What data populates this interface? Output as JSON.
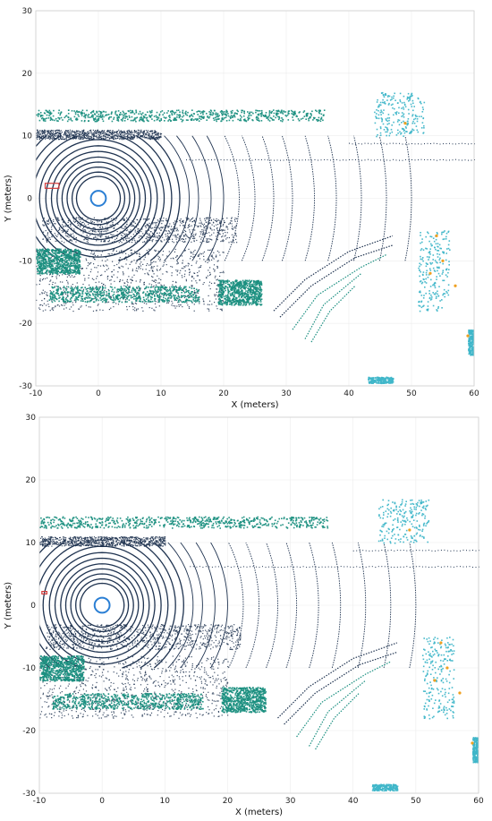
{
  "colors": {
    "ground": "#1f3350",
    "vegetation": "#1a8f80",
    "cyan_cluster": "#3fb6c9",
    "orange_points": "#f0a020",
    "ego_circle": "#2b7fd4",
    "red_marker": "#d23a3a"
  },
  "chart_data": [
    {
      "type": "scatter",
      "title": "",
      "xlabel": "X (meters)",
      "ylabel": "Y (meters)",
      "xlim": [
        -10,
        60
      ],
      "ylim": [
        -30,
        30
      ],
      "xticks": [
        -10,
        0,
        10,
        20,
        30,
        40,
        50,
        60
      ],
      "yticks": [
        -30,
        -20,
        -10,
        0,
        10,
        20,
        30
      ],
      "xtick_labels": [
        "-10",
        "0",
        "10",
        "20",
        "30",
        "40",
        "50",
        "60"
      ],
      "ytick_labels": [
        "-30",
        "-20",
        "-10",
        "0",
        "10",
        "20",
        "30"
      ],
      "grid": true,
      "ego": {
        "x": 0,
        "y": 0,
        "radius": 1.2
      },
      "red_marker": {
        "x": -8.5,
        "y": 2,
        "width": 2.2,
        "height": 0.8
      },
      "rings": {
        "center": [
          0,
          0
        ],
        "radii": [
          3.5,
          4.2,
          5,
          5.8,
          6.6,
          7.5,
          8.4,
          9.4,
          10.5,
          11.7,
          13,
          14.5,
          16,
          18,
          20,
          22.5,
          25,
          28,
          31,
          34.5,
          38,
          42,
          46,
          50
        ],
        "ymin": -10,
        "ymax": 10
      },
      "vegetation_bands": [
        {
          "x": [
            -10,
            36
          ],
          "y": [
            12.4,
            14.2
          ]
        },
        {
          "x": [
            -8,
            16
          ],
          "y": [
            -16.5,
            -14.0
          ]
        },
        {
          "x": [
            -10,
            -3
          ],
          "y": [
            -12,
            -8
          ]
        },
        {
          "x": [
            19,
            26
          ],
          "y": [
            -17,
            -13
          ]
        }
      ],
      "dark_bands": [
        {
          "x": [
            -10,
            10
          ],
          "y": [
            9.5,
            11.0
          ]
        },
        {
          "x": [
            -9,
            22
          ],
          "y": [
            -7,
            -3
          ]
        },
        {
          "x": [
            -10,
            20
          ],
          "y": [
            -18,
            -8
          ]
        }
      ],
      "cyan_clusters": [
        {
          "x": [
            44,
            52
          ],
          "y": [
            10,
            17
          ]
        },
        {
          "x": [
            51,
            56
          ],
          "y": [
            -18,
            -5
          ]
        },
        {
          "x": [
            59,
            60
          ],
          "y": [
            -25,
            -21
          ]
        },
        {
          "x": [
            43,
            47
          ],
          "y": [
            -29.5,
            -28.5
          ]
        }
      ],
      "curb_lines": [
        [
          [
            28,
            -18
          ],
          [
            33,
            -13
          ],
          [
            40,
            -8.5
          ],
          [
            47,
            -6
          ]
        ],
        [
          [
            29,
            -19
          ],
          [
            34,
            -14
          ],
          [
            41,
            -9.5
          ],
          [
            47,
            -7.5
          ]
        ],
        [
          [
            31,
            -21
          ],
          [
            35,
            -15.5
          ],
          [
            42,
            -11
          ],
          [
            46,
            -9
          ]
        ],
        [
          [
            33,
            -22.5
          ],
          [
            36,
            -17
          ],
          [
            42,
            -12
          ]
        ],
        [
          [
            34,
            -23
          ],
          [
            37,
            -18
          ],
          [
            41,
            -14
          ]
        ]
      ],
      "road_points": [
        {
          "x": [
            14,
            60
          ],
          "y": 6.2
        },
        {
          "x": [
            40,
            60
          ],
          "y": 8.8
        }
      ],
      "orange_points": [
        [
          54,
          -6
        ],
        [
          55,
          -10
        ],
        [
          57,
          -14
        ],
        [
          59,
          -22
        ],
        [
          49,
          12
        ],
        [
          53,
          -12
        ]
      ]
    },
    {
      "type": "scatter",
      "title": "",
      "xlabel": "X (meters)",
      "ylabel": "Y (meters)",
      "xlim": [
        -10,
        60
      ],
      "ylim": [
        -30,
        30
      ],
      "xticks": [
        -10,
        0,
        10,
        20,
        30,
        40,
        50,
        60
      ],
      "yticks": [
        -30,
        -20,
        -10,
        0,
        10,
        20,
        30
      ],
      "xtick_labels": [
        "-10",
        "0",
        "10",
        "20",
        "30",
        "40",
        "50",
        "60"
      ],
      "ytick_labels": [
        "-30",
        "-20",
        "-10",
        "0",
        "10",
        "20",
        "30"
      ],
      "grid": true,
      "ego": {
        "x": 0,
        "y": 0,
        "radius": 1.2
      },
      "red_marker": {
        "x": -9.6,
        "y": 2,
        "width": 0.8,
        "height": 0.4
      },
      "rings": {
        "center": [
          0,
          0
        ],
        "radii": [
          3.5,
          4.2,
          5,
          5.8,
          6.6,
          7.5,
          8.4,
          9.4,
          10.5,
          11.7,
          13,
          14.5,
          16,
          18,
          20,
          22.5,
          25,
          28,
          31,
          34.5,
          38,
          42,
          46,
          50
        ],
        "ymin": -10,
        "ymax": 10
      },
      "vegetation_bands": [
        {
          "x": [
            -10,
            36
          ],
          "y": [
            12.4,
            14.2
          ]
        },
        {
          "x": [
            -8,
            16
          ],
          "y": [
            -16.5,
            -14.0
          ]
        },
        {
          "x": [
            -10,
            -3
          ],
          "y": [
            -12,
            -8
          ]
        },
        {
          "x": [
            19,
            26
          ],
          "y": [
            -17,
            -13
          ]
        }
      ],
      "dark_bands": [
        {
          "x": [
            -10,
            10
          ],
          "y": [
            9.5,
            11.0
          ]
        },
        {
          "x": [
            -9,
            22
          ],
          "y": [
            -7,
            -3
          ]
        },
        {
          "x": [
            -10,
            20
          ],
          "y": [
            -18,
            -8
          ]
        }
      ],
      "cyan_clusters": [
        {
          "x": [
            44,
            52
          ],
          "y": [
            10,
            17
          ]
        },
        {
          "x": [
            51,
            56
          ],
          "y": [
            -18,
            -5
          ]
        },
        {
          "x": [
            59,
            60
          ],
          "y": [
            -25,
            -21
          ]
        },
        {
          "x": [
            43,
            47
          ],
          "y": [
            -29.5,
            -28.5
          ]
        }
      ],
      "curb_lines": [
        [
          [
            28,
            -18
          ],
          [
            33,
            -13
          ],
          [
            40,
            -8.5
          ],
          [
            47,
            -6
          ]
        ],
        [
          [
            29,
            -19
          ],
          [
            34,
            -14
          ],
          [
            41,
            -9.5
          ],
          [
            47,
            -7.5
          ]
        ],
        [
          [
            31,
            -21
          ],
          [
            35,
            -15.5
          ],
          [
            42,
            -11
          ],
          [
            46,
            -9
          ]
        ],
        [
          [
            33,
            -22.5
          ],
          [
            36,
            -17
          ],
          [
            42,
            -12
          ]
        ],
        [
          [
            34,
            -23
          ],
          [
            37,
            -18
          ],
          [
            41,
            -14
          ]
        ]
      ],
      "road_points": [
        {
          "x": [
            14,
            60
          ],
          "y": 6.2
        },
        {
          "x": [
            40,
            60
          ],
          "y": 8.8
        }
      ],
      "orange_points": [
        [
          54,
          -6
        ],
        [
          55,
          -10
        ],
        [
          57,
          -14
        ],
        [
          59,
          -22
        ],
        [
          49,
          12
        ],
        [
          53,
          -12
        ]
      ]
    }
  ]
}
